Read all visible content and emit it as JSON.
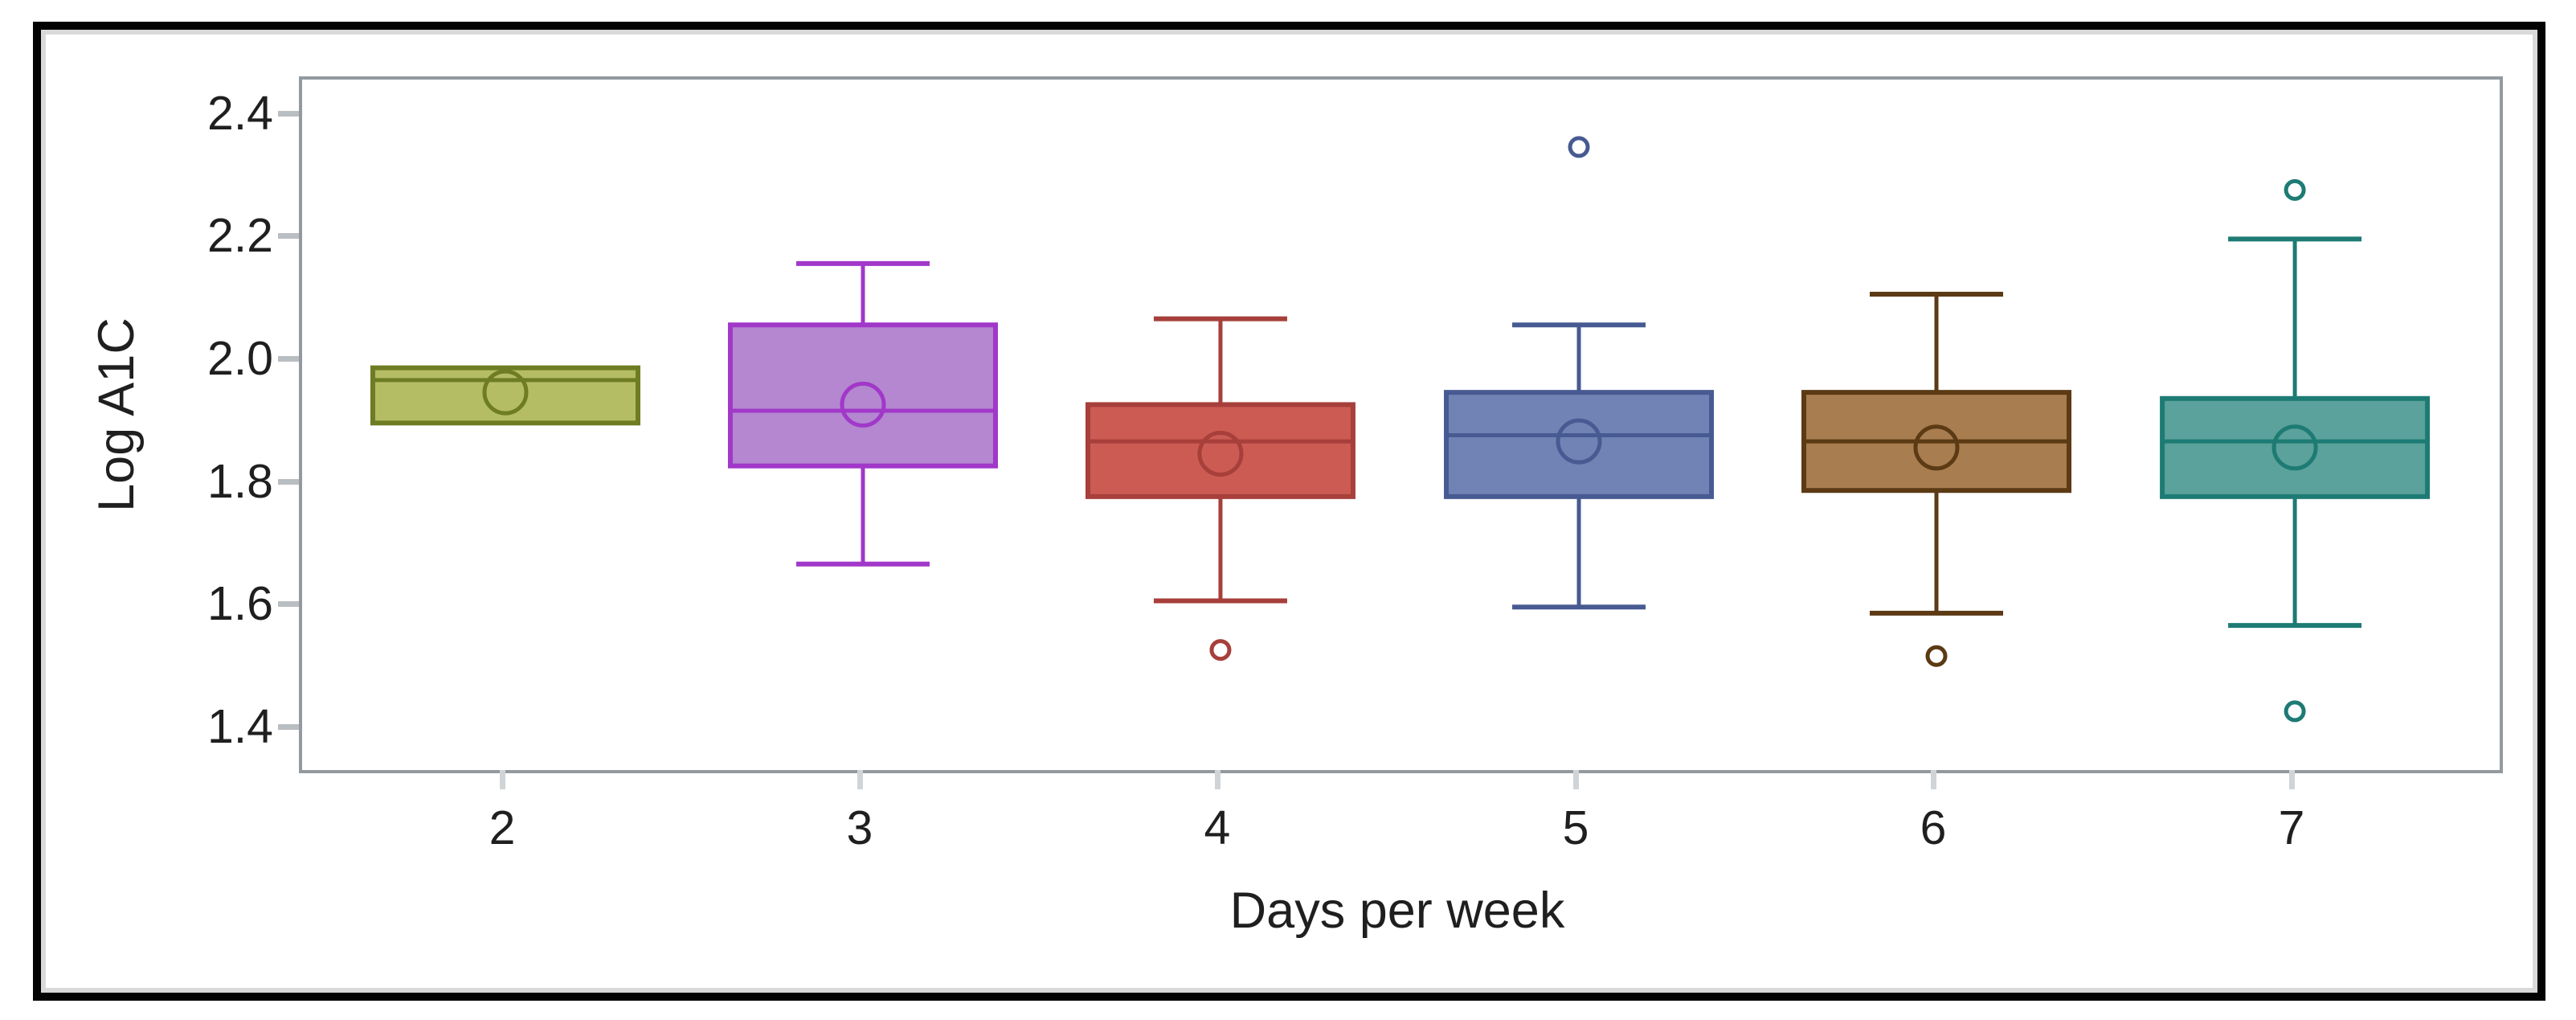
{
  "figure": {
    "background_color": "#ffffff",
    "outer_border_color": "#030303",
    "plot_frame_color": "#939a9f",
    "tick_color": "#b9bec2",
    "text_color": "#1f1f1f"
  },
  "chart_data": {
    "type": "box",
    "title": "",
    "xlabel": "Days per week",
    "ylabel": "Log A1C",
    "categories": [
      "2",
      "3",
      "4",
      "5",
      "6",
      "7"
    ],
    "y_ticks": [
      1.4,
      1.6,
      1.8,
      2.0,
      2.2,
      2.4
    ],
    "y_tick_labels": [
      "1.4",
      "1.6",
      "1.8",
      "2.0",
      "2.2",
      "2.4"
    ],
    "ylim": [
      1.3342,
      2.46
    ],
    "grid": false,
    "legend": "none",
    "marker_legend": "circle outline = mean, open dots = outliers",
    "series": [
      {
        "category": "2",
        "whisker_low": 1.9,
        "q1": 1.9,
        "median": 1.97,
        "mean": 1.95,
        "q3": 1.99,
        "whisker_high": 1.99,
        "outliers": [],
        "fill": "#b5bd64",
        "stroke": "#6e7c23"
      },
      {
        "category": "3",
        "whisker_low": 1.67,
        "q1": 1.83,
        "median": 1.92,
        "mean": 1.93,
        "q3": 2.06,
        "whisker_high": 2.16,
        "outliers": [],
        "fill": "#b487d0",
        "stroke": "#a138c9"
      },
      {
        "category": "4",
        "whisker_low": 1.61,
        "q1": 1.78,
        "median": 1.87,
        "mean": 1.85,
        "q3": 1.93,
        "whisker_high": 2.07,
        "outliers": [
          1.53
        ],
        "fill": "#cc5b54",
        "stroke": "#a73f3a"
      },
      {
        "category": "5",
        "whisker_low": 1.6,
        "q1": 1.78,
        "median": 1.88,
        "mean": 1.87,
        "q3": 1.95,
        "whisker_high": 2.06,
        "outliers": [
          2.35
        ],
        "fill": "#7183b5",
        "stroke": "#475a92"
      },
      {
        "category": "6",
        "whisker_low": 1.59,
        "q1": 1.79,
        "median": 1.87,
        "mean": 1.86,
        "q3": 1.95,
        "whisker_high": 2.11,
        "outliers": [
          1.52
        ],
        "fill": "#a87d4f",
        "stroke": "#5b3a14"
      },
      {
        "category": "7",
        "whisker_low": 1.57,
        "q1": 1.78,
        "median": 1.87,
        "mean": 1.86,
        "q3": 1.94,
        "whisker_high": 2.2,
        "outliers": [
          2.28,
          1.43
        ],
        "fill": "#5aa29b",
        "stroke": "#1d7b74"
      }
    ]
  }
}
